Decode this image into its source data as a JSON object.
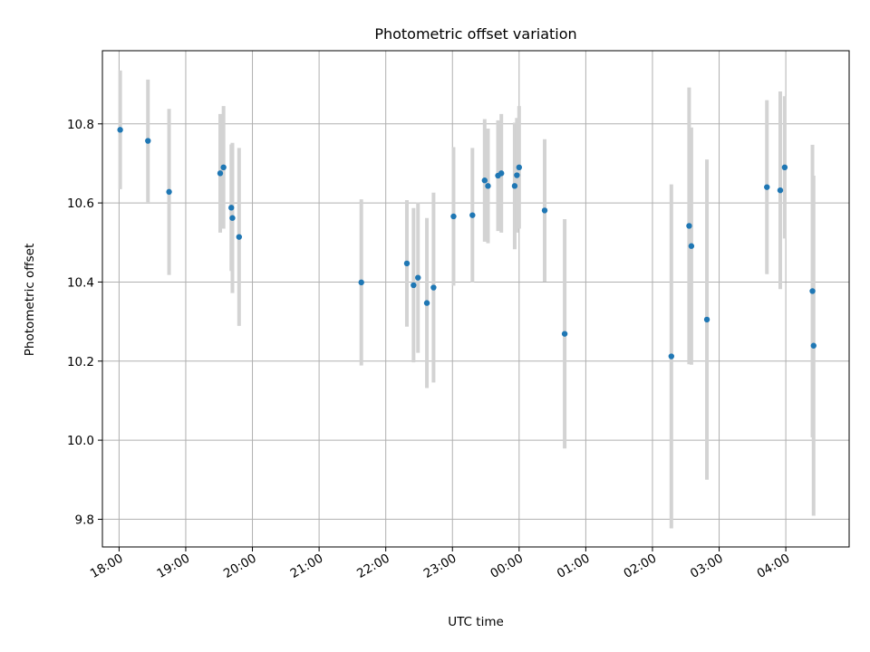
{
  "chart_data": {
    "type": "scatter",
    "title": "Photometric offset variation",
    "xlabel": "UTC time",
    "ylabel": "Photometric offset",
    "xlim": [
      "17:45",
      "04:57"
    ],
    "ylim": [
      9.73,
      10.985
    ],
    "grid": true,
    "x_ticks": [
      "18:00",
      "19:00",
      "20:00",
      "21:00",
      "22:00",
      "23:00",
      "00:00",
      "01:00",
      "02:00",
      "03:00",
      "04:00"
    ],
    "y_ticks": [
      9.8,
      10.0,
      10.2,
      10.4,
      10.6,
      10.8
    ],
    "y_tick_labels": [
      "9.8",
      "10.0",
      "10.2",
      "10.4",
      "10.6",
      "10.8"
    ],
    "colors": {
      "point": "#1f77b4",
      "errorbar": "#d3d3d3",
      "grid": "#b0b0b0"
    },
    "points": [
      {
        "x": "18:01",
        "y": 10.785,
        "err": 0.15
      },
      {
        "x": "18:26",
        "y": 10.757,
        "err": 0.155
      },
      {
        "x": "18:45",
        "y": 10.628,
        "err": 0.21
      },
      {
        "x": "19:31",
        "y": 10.675,
        "err": 0.15
      },
      {
        "x": "19:34",
        "y": 10.69,
        "err": 0.155
      },
      {
        "x": "19:41",
        "y": 10.588,
        "err": 0.16
      },
      {
        "x": "19:42",
        "y": 10.562,
        "err": 0.19
      },
      {
        "x": "19:48",
        "y": 10.514,
        "err": 0.225
      },
      {
        "x": "21:38",
        "y": 10.399,
        "err": 0.21
      },
      {
        "x": "22:19",
        "y": 10.447,
        "err": 0.16
      },
      {
        "x": "22:25",
        "y": 10.392,
        "err": 0.195
      },
      {
        "x": "22:29",
        "y": 10.411,
        "err": 0.19
      },
      {
        "x": "22:37",
        "y": 10.347,
        "err": 0.215
      },
      {
        "x": "22:43",
        "y": 10.386,
        "err": 0.24
      },
      {
        "x": "23:01",
        "y": 10.566,
        "err": 0.175
      },
      {
        "x": "23:18",
        "y": 10.569,
        "err": 0.17
      },
      {
        "x": "23:29",
        "y": 10.657,
        "err": 0.155
      },
      {
        "x": "23:32",
        "y": 10.643,
        "err": 0.145
      },
      {
        "x": "23:41",
        "y": 10.669,
        "err": 0.14
      },
      {
        "x": "23:44",
        "y": 10.675,
        "err": 0.15
      },
      {
        "x": "23:56",
        "y": 10.643,
        "err": 0.16
      },
      {
        "x": "23:58",
        "y": 10.67,
        "err": 0.145
      },
      {
        "x": "00:00",
        "y": 10.69,
        "err": 0.155
      },
      {
        "x": "00:23",
        "y": 10.581,
        "err": 0.18
      },
      {
        "x": "00:41",
        "y": 10.269,
        "err": 0.29
      },
      {
        "x": "02:17",
        "y": 10.212,
        "err": 0.435
      },
      {
        "x": "02:33",
        "y": 10.542,
        "err": 0.35
      },
      {
        "x": "02:35",
        "y": 10.491,
        "err": 0.3
      },
      {
        "x": "02:49",
        "y": 10.305,
        "err": 0.405
      },
      {
        "x": "03:43",
        "y": 10.64,
        "err": 0.22
      },
      {
        "x": "03:55",
        "y": 10.632,
        "err": 0.25
      },
      {
        "x": "03:59",
        "y": 10.69,
        "err": 0.18
      },
      {
        "x": "04:24",
        "y": 10.377,
        "err": 0.37
      },
      {
        "x": "04:25",
        "y": 10.239,
        "err": 0.43
      }
    ]
  }
}
